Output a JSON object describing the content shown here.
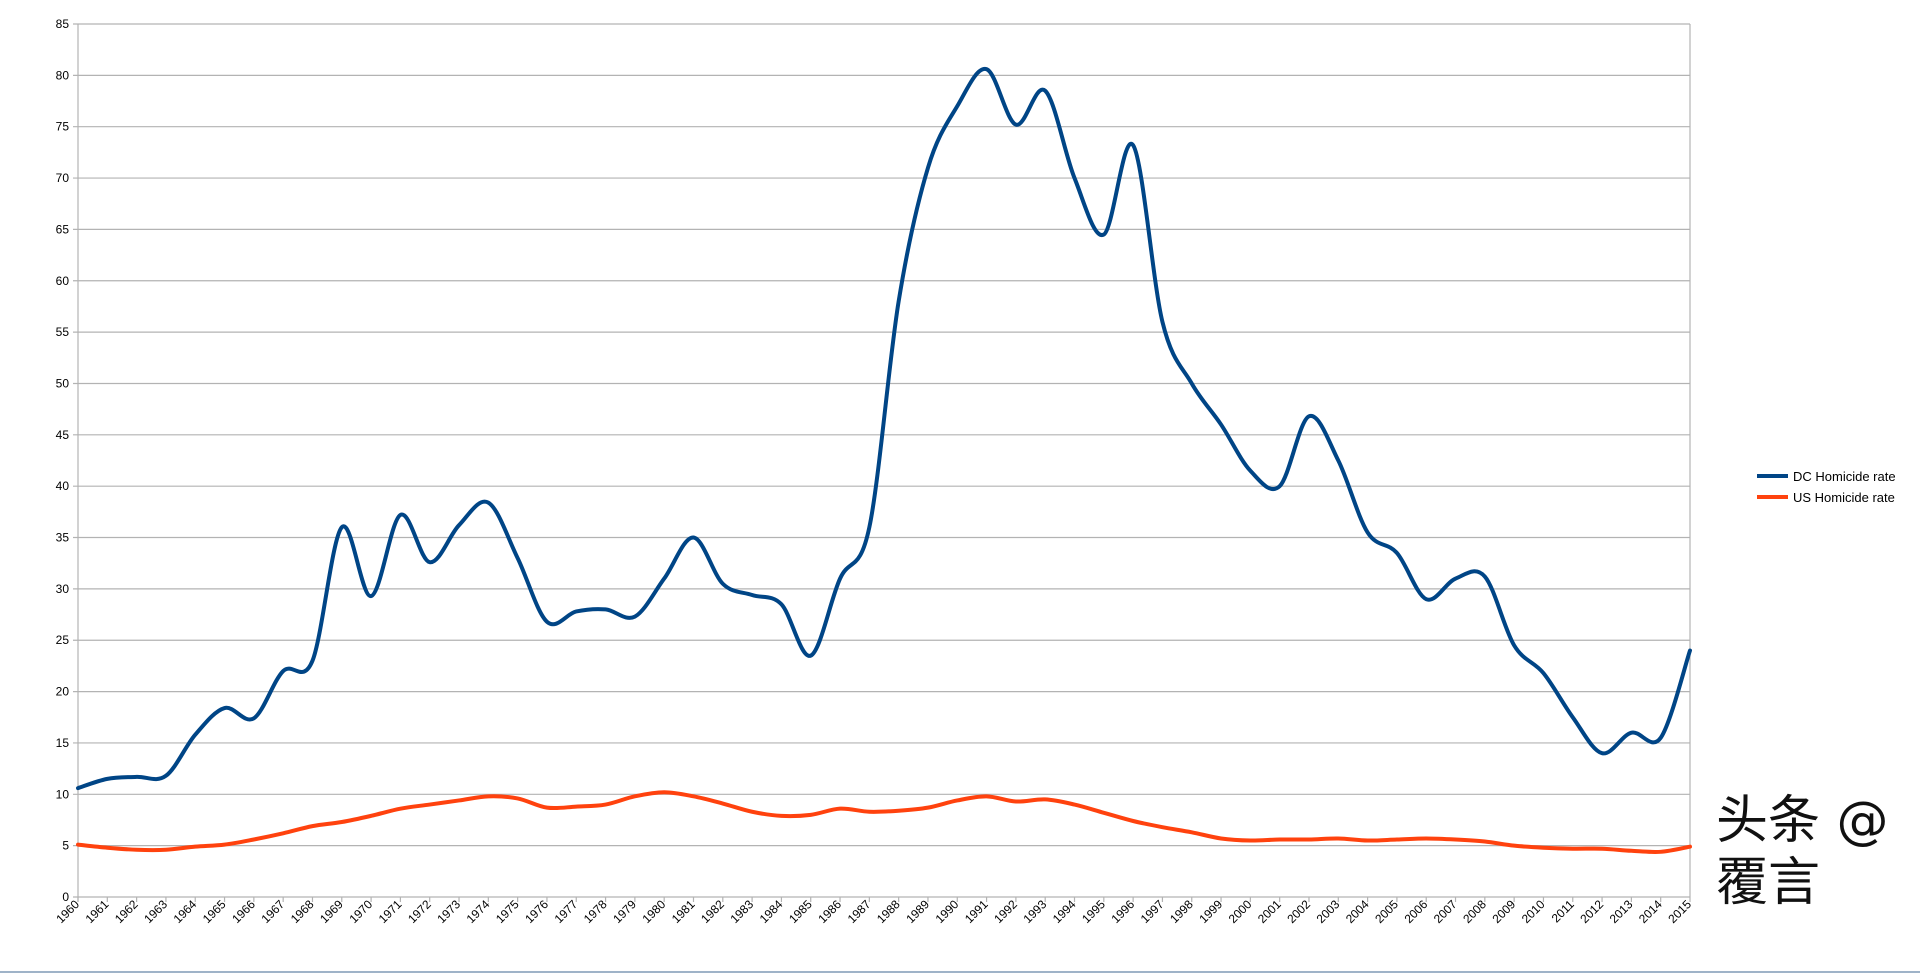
{
  "chart_data": {
    "type": "line",
    "smooth": true,
    "title": "",
    "xlabel": "",
    "ylabel": "",
    "ylim": [
      0,
      85
    ],
    "y_ticks": [
      0,
      5,
      10,
      15,
      20,
      25,
      30,
      35,
      40,
      45,
      50,
      55,
      60,
      65,
      70,
      75,
      80,
      85
    ],
    "grid": "horizontal",
    "legend_position": "right",
    "categories": [
      "1960",
      "1961",
      "1962",
      "1963",
      "1964",
      "1965",
      "1966",
      "1967",
      "1968",
      "1969",
      "1970",
      "1971",
      "1972",
      "1973",
      "1974",
      "1975",
      "1976",
      "1977",
      "1978",
      "1979",
      "1980",
      "1981",
      "1982",
      "1983",
      "1984",
      "1985",
      "1986",
      "1987",
      "1988",
      "1989",
      "1990",
      "1991",
      "1992",
      "1993",
      "1994",
      "1995",
      "1996",
      "1997",
      "1998",
      "1999",
      "2000",
      "2001",
      "2002",
      "2003",
      "2004",
      "2005",
      "2006",
      "2007",
      "2008",
      "2009",
      "2010",
      "2011",
      "2012",
      "2013",
      "2014",
      "2015"
    ],
    "series": [
      {
        "name": "DC Homicide rate",
        "color": "#004586",
        "values": [
          10.6,
          11.5,
          11.7,
          11.8,
          15.8,
          18.4,
          17.4,
          22,
          23,
          36,
          29.3,
          37.2,
          32.6,
          36.2,
          38.4,
          33,
          26.8,
          27.8,
          28,
          27.3,
          31,
          35,
          30.5,
          29.4,
          28.5,
          23.5,
          31,
          36,
          58,
          71,
          77,
          80.6,
          75.2,
          78.5,
          70,
          64.5,
          73.2,
          56,
          50,
          46,
          41.5,
          40,
          46.8,
          42.5,
          35.5,
          33.5,
          29,
          31,
          31.2,
          24.5,
          21.8,
          17.5,
          14,
          16,
          15.5,
          24
        ]
      },
      {
        "name": "US Homicide rate",
        "color": "#ff420e",
        "values": [
          5.1,
          4.8,
          4.6,
          4.6,
          4.9,
          5.1,
          5.6,
          6.2,
          6.9,
          7.3,
          7.9,
          8.6,
          9.0,
          9.4,
          9.8,
          9.6,
          8.7,
          8.8,
          9.0,
          9.8,
          10.2,
          9.8,
          9.1,
          8.3,
          7.9,
          8.0,
          8.6,
          8.3,
          8.4,
          8.7,
          9.4,
          9.8,
          9.3,
          9.5,
          9.0,
          8.2,
          7.4,
          6.8,
          6.3,
          5.7,
          5.5,
          5.6,
          5.6,
          5.7,
          5.5,
          5.6,
          5.7,
          5.6,
          5.4,
          5.0,
          4.8,
          4.7,
          4.7,
          4.5,
          4.4,
          4.9
        ]
      }
    ]
  },
  "watermark": "头条 @覆言"
}
